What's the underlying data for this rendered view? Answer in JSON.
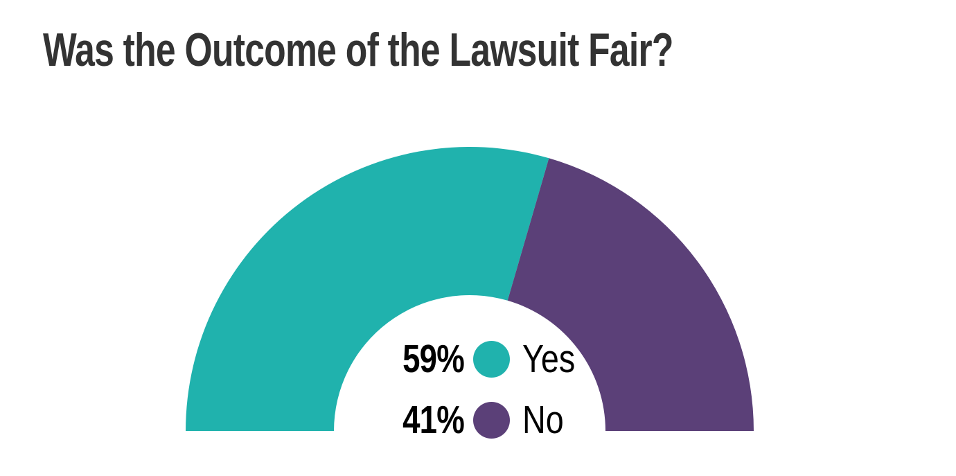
{
  "chart_data": {
    "type": "pie",
    "variant": "semicircle-donut",
    "title": "Was the Outcome of the Lawsuit Fair?",
    "total_angle_deg": 180,
    "unit": "%",
    "legend_position": "inside-center",
    "series": [
      {
        "label": "Yes",
        "value": 59,
        "display": "59%",
        "color": "#20B2AD"
      },
      {
        "label": "No",
        "value": 41,
        "display": "41%",
        "color": "#5B4078"
      }
    ]
  },
  "colors": {
    "teal": "#20B2AD",
    "purple": "#5B4078",
    "title_text": "#333333",
    "legend_text": "#000000",
    "background": "#FFFFFF"
  }
}
